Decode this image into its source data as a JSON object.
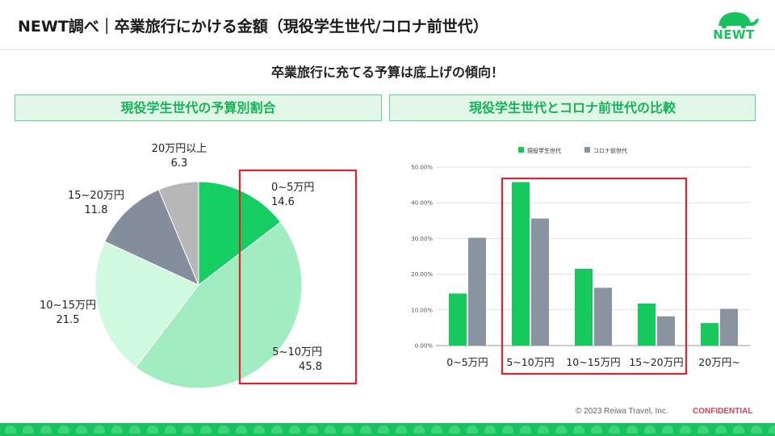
{
  "header": {
    "title": "NEWT調べ｜卒業旅行にかける金額（現役学生世代/コロナ前世代）"
  },
  "logo": {
    "text": "NEWT"
  },
  "subtitle": "卒業旅行に充てる予算は底上げの傾向！",
  "left_panel": {
    "title": "現役学生世代の予算別割合"
  },
  "right_panel": {
    "title": "現役学生世代とコロナ前世代の比較"
  },
  "colors": {
    "accent": "#18c25f",
    "highlight_box": "#d9262e",
    "current_series": "#16c95c",
    "prepandemic_series": "#8a93a0",
    "pie_slices": [
      "#16cf62",
      "#a1edc1",
      "#cffae0",
      "#858e9c",
      "#b7b7b7"
    ]
  },
  "chart_data": [
    {
      "type": "pie",
      "title": "現役学生世代の予算別割合",
      "slices": [
        {
          "label": "0~5万円",
          "value": 14.6
        },
        {
          "label": "5~10万円",
          "value": 45.8
        },
        {
          "label": "10~15万円",
          "value": 21.5
        },
        {
          "label": "15~20万円",
          "value": 11.8
        },
        {
          "label": "20万円以上",
          "value": 6.3
        }
      ],
      "highlight": [
        "0~5万円",
        "5~10万円"
      ]
    },
    {
      "type": "bar",
      "title": "現役学生世代とコロナ前世代の比較",
      "categories": [
        "0~5万円",
        "5~10万円",
        "10~15万円",
        "15~20万円",
        "20万円~"
      ],
      "series": [
        {
          "name": "現役学生世代",
          "values": [
            14.6,
            45.8,
            21.5,
            11.8,
            6.3
          ]
        },
        {
          "name": "コロナ前世代",
          "values": [
            30.2,
            35.6,
            16.2,
            8.2,
            10.3
          ]
        }
      ],
      "ylim": [
        0,
        50
      ],
      "yticks": [
        "0.00%",
        "10.00%",
        "20.00%",
        "30.00%",
        "40.00%",
        "50.00%"
      ],
      "grid": true,
      "legend": "top",
      "highlight": [
        "5~10万円",
        "10~15万円",
        "15~20万円"
      ]
    }
  ],
  "footer": {
    "copyright": "© 2023 Reiwa Travel, Inc.",
    "confidential": "CONFIDENTIAL"
  }
}
